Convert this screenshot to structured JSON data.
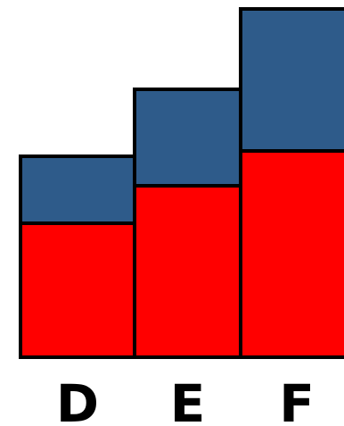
{
  "chart_data": {
    "type": "bar",
    "stacked": true,
    "categories": [
      "D",
      "E",
      "F"
    ],
    "series": [
      {
        "values": [
          150,
          192,
          231
        ],
        "color": "#ff0000"
      },
      {
        "values": [
          75,
          108,
          159
        ],
        "color": "#2e5b8a"
      }
    ],
    "title": "",
    "xlabel": "",
    "ylabel": "",
    "ylim": [
      0,
      390
    ],
    "grid": false,
    "legend": "none"
  }
}
